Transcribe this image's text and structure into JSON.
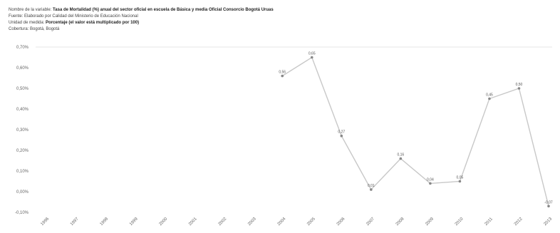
{
  "meta": {
    "indicator_label": "Nombre de la variable:",
    "indicator_value": "Tasa de Mortalidad (%) anual del sector oficial en escuela de Básica y media Oficial Consorcio Bogotá Uruas",
    "source_label": "Fuente:",
    "source_value": "Elaborado por Calidad del Ministerio de Educación Nacional",
    "unit_label": "Unidad de medida:",
    "unit_value": "Porcentaje (el valor está multiplicado por 100)",
    "coverage": "Cobertura: Bogotá, Bogotá"
  },
  "chart_data": {
    "type": "line",
    "title": "",
    "xlabel": "",
    "ylabel": "",
    "ylim": [
      0.0,
      0.7
    ],
    "y_ticks": [
      "0,70%",
      "0,60%",
      "0,50%",
      "0,40%",
      "0,30%",
      "0,20%",
      "0,10%",
      "0,00%",
      "-0,10%"
    ],
    "categories": [
      "1996",
      "1997",
      "1998",
      "1999",
      "2000",
      "2001",
      "2002",
      "2003",
      "2004",
      "2005",
      "2006",
      "2007",
      "2008",
      "2009",
      "2010",
      "2011",
      "2012",
      "2013"
    ],
    "series": [
      {
        "name": "",
        "values": [
          null,
          null,
          null,
          null,
          null,
          null,
          null,
          null,
          0.56,
          0.65,
          0.27,
          0.01,
          0.16,
          0.04,
          0.05,
          0.45,
          0.5,
          -0.07
        ],
        "labels": [
          "",
          "",
          "",
          "",
          "",
          "",
          "",
          "",
          "0,56",
          "0,65",
          "0,27",
          "0,01",
          "0,16",
          "0,04",
          "0,05",
          "0,45",
          "0,50",
          "-0,07"
        ]
      }
    ],
    "line_color": "#c8c8c8",
    "point_color": "#888888"
  }
}
